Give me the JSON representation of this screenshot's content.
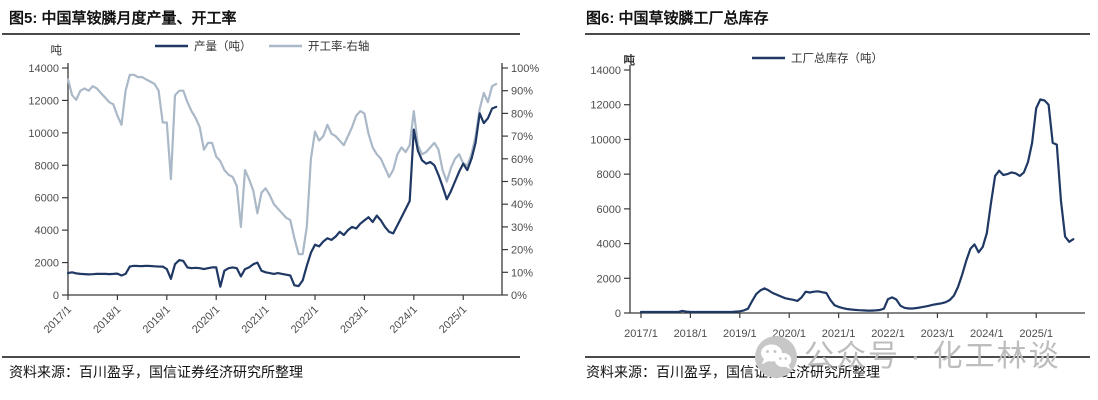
{
  "watermark": {
    "icon": "wechat-icon",
    "text": "公众号 · 化工林谈",
    "color": "#bdbdbd"
  },
  "chart_data": [
    {
      "type": "line",
      "title": "图5: 中国草铵膦月度产量、开工率",
      "unit_label": "吨",
      "source": "资料来源：百川盈孚，国信证券经济研究所整理",
      "x_interval": "monthly",
      "x_range": [
        "2017/1",
        "2025/9"
      ],
      "x_tick_labels": [
        "2017/1",
        "2018/1",
        "2019/1",
        "2020/1",
        "2021/1",
        "2022/1",
        "2023/1",
        "2024/1",
        "2025/1"
      ],
      "y_left": {
        "min": 0,
        "max": 14000,
        "tick_labels": [
          "0",
          "2000",
          "4000",
          "6000",
          "8000",
          "10000",
          "12000",
          "14000"
        ]
      },
      "y_right": {
        "min": 0,
        "max": 100,
        "tick_labels": [
          "0%",
          "10%",
          "20%",
          "30%",
          "40%",
          "50%",
          "60%",
          "70%",
          "80%",
          "90%",
          "100%"
        ]
      },
      "grid": false,
      "legend_position": "top-center",
      "series": [
        {
          "name": "产量（吨）",
          "axis": "left",
          "color": "#1F3864",
          "values": [
            1350,
            1400,
            1330,
            1300,
            1290,
            1270,
            1280,
            1300,
            1310,
            1300,
            1290,
            1300,
            1320,
            1200,
            1300,
            1750,
            1800,
            1790,
            1780,
            1800,
            1790,
            1770,
            1760,
            1750,
            1600,
            1000,
            1900,
            2150,
            2100,
            1700,
            1650,
            1680,
            1650,
            1600,
            1650,
            1700,
            1700,
            510,
            1500,
            1650,
            1700,
            1650,
            1150,
            1600,
            1700,
            1900,
            2000,
            1500,
            1400,
            1350,
            1300,
            1350,
            1300,
            1250,
            1200,
            600,
            550,
            900,
            1800,
            2600,
            3100,
            3000,
            3300,
            3500,
            3400,
            3600,
            3900,
            3700,
            4000,
            4200,
            4100,
            4400,
            4600,
            4800,
            4500,
            4900,
            4600,
            4200,
            3900,
            3800,
            4300,
            4800,
            5300,
            5800,
            10200,
            8900,
            8300,
            8100,
            8200,
            8000,
            7400,
            6700,
            5900,
            6400,
            7000,
            7600,
            8100,
            7700,
            8400,
            9400,
            11200,
            10600,
            10900,
            11500,
            11600
          ]
        },
        {
          "name": "开工率-右轴",
          "axis": "right",
          "color": "#AAB8C7",
          "values": [
            95,
            88,
            86,
            90,
            91,
            90,
            92,
            91,
            89,
            87,
            85,
            84,
            79,
            75,
            90,
            97,
            97,
            96,
            96,
            95,
            94,
            93,
            90,
            76,
            76,
            51,
            88,
            90,
            90,
            85,
            81,
            78,
            74,
            64,
            67,
            67,
            61,
            59,
            55,
            53,
            52,
            48,
            30,
            55,
            51,
            46,
            36,
            45,
            47,
            44,
            40,
            38,
            36,
            34,
            33,
            25,
            18,
            18,
            30,
            60,
            72,
            68,
            70,
            75,
            71,
            70,
            68,
            66,
            70,
            74,
            79,
            81,
            80,
            71,
            65,
            62,
            60,
            56,
            52,
            55,
            62,
            65,
            63,
            66,
            81,
            66,
            62,
            63,
            65,
            67,
            64,
            55,
            50,
            56,
            60,
            62,
            58,
            57,
            62,
            70,
            82,
            89,
            85,
            92,
            93
          ]
        }
      ]
    },
    {
      "type": "line",
      "title": "图6: 中国草铵膦工厂总库存",
      "unit_label": "吨",
      "source": "资料来源：百川盈孚，国信证券经济研究所整理",
      "x_interval": "monthly",
      "x_range": [
        "2017/1",
        "2025/10"
      ],
      "x_tick_labels": [
        "2017/1",
        "2018/1",
        "2019/1",
        "2020/1",
        "2021/1",
        "2022/1",
        "2023/1",
        "2024/1",
        "2025/1"
      ],
      "y_left": {
        "min": 0,
        "max": 14000,
        "tick_labels": [
          "0",
          "2000",
          "4000",
          "6000",
          "8000",
          "10000",
          "12000",
          "14000"
        ]
      },
      "grid": false,
      "legend_position": "top-center",
      "series": [
        {
          "name": "工厂总库存（吨）",
          "axis": "left",
          "color": "#1F3864",
          "values": [
            60,
            60,
            60,
            60,
            60,
            60,
            60,
            60,
            60,
            60,
            120,
            80,
            60,
            60,
            60,
            60,
            60,
            60,
            60,
            60,
            60,
            60,
            60,
            80,
            100,
            150,
            250,
            700,
            1100,
            1300,
            1420,
            1300,
            1150,
            1050,
            950,
            850,
            800,
            760,
            700,
            900,
            1230,
            1180,
            1230,
            1250,
            1200,
            1150,
            750,
            450,
            350,
            280,
            230,
            200,
            180,
            160,
            150,
            140,
            140,
            150,
            170,
            250,
            800,
            900,
            780,
            420,
            300,
            260,
            260,
            290,
            330,
            370,
            420,
            480,
            520,
            560,
            620,
            750,
            1000,
            1500,
            2200,
            3000,
            3700,
            3950,
            3500,
            3800,
            4600,
            6300,
            7900,
            8200,
            7950,
            8000,
            8100,
            8050,
            7900,
            8100,
            8700,
            9800,
            11800,
            12300,
            12250,
            12000,
            9800,
            9700,
            6500,
            4400,
            4100,
            4250
          ]
        }
      ]
    }
  ]
}
